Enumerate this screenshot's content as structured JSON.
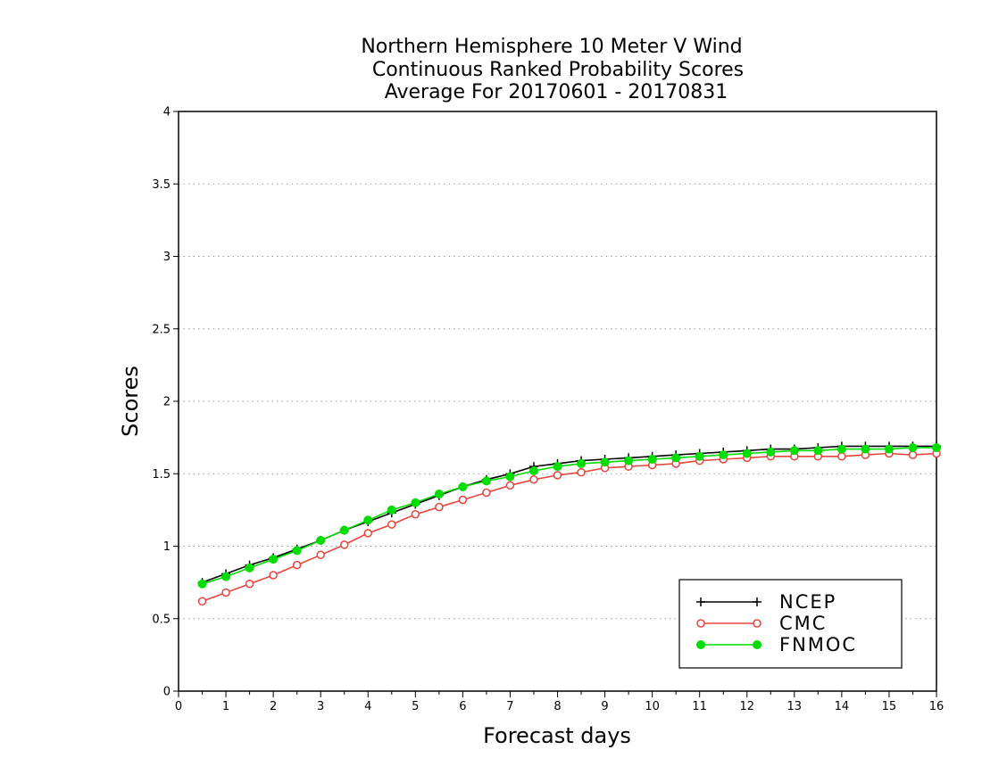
{
  "chart_data": {
    "type": "line",
    "title": [
      "Northern Hemisphere 10 Meter V Wind",
      "Continuous Ranked Probability Scores",
      "Average For 20170601 - 20170831"
    ],
    "xlabel": "Forecast days",
    "ylabel": "Scores",
    "xlim": [
      0,
      16
    ],
    "ylim": [
      0,
      4
    ],
    "xticks": [
      "0",
      "1",
      "2",
      "3",
      "4",
      "5",
      "6",
      "7",
      "8",
      "9",
      "10",
      "11",
      "12",
      "13",
      "14",
      "15",
      "16"
    ],
    "yticks": [
      "0",
      "0.5",
      "1",
      "1.5",
      "2",
      "2.5",
      "3",
      "3.5",
      "4"
    ],
    "grid": "horizontal-dotted",
    "legend_position": "bottom-right",
    "x": [
      0.5,
      1,
      1.5,
      2,
      2.5,
      3,
      3.5,
      4,
      4.5,
      5,
      5.5,
      6,
      6.5,
      7,
      7.5,
      8,
      8.5,
      9,
      9.5,
      10,
      10.5,
      11,
      11.5,
      12,
      12.5,
      13,
      13.5,
      14,
      14.5,
      15,
      15.5,
      16
    ],
    "series": [
      {
        "name": "NCEP",
        "color": "#000000",
        "marker": "plus",
        "values": [
          0.75,
          0.81,
          0.87,
          0.92,
          0.98,
          1.04,
          1.11,
          1.17,
          1.23,
          1.29,
          1.35,
          1.41,
          1.46,
          1.5,
          1.55,
          1.57,
          1.59,
          1.6,
          1.61,
          1.62,
          1.63,
          1.64,
          1.65,
          1.66,
          1.67,
          1.67,
          1.68,
          1.69,
          1.69,
          1.69,
          1.69,
          1.69
        ]
      },
      {
        "name": "CMC",
        "color": "#e8453c",
        "marker": "open-circle",
        "values": [
          0.62,
          0.68,
          0.74,
          0.8,
          0.87,
          0.94,
          1.01,
          1.09,
          1.15,
          1.22,
          1.27,
          1.32,
          1.37,
          1.42,
          1.46,
          1.49,
          1.51,
          1.54,
          1.55,
          1.56,
          1.57,
          1.59,
          1.6,
          1.61,
          1.62,
          1.62,
          1.62,
          1.62,
          1.63,
          1.64,
          1.63,
          1.64
        ]
      },
      {
        "name": "FNMOC",
        "color": "#00dd00",
        "marker": "filled-circle",
        "values": [
          0.74,
          0.79,
          0.85,
          0.91,
          0.97,
          1.04,
          1.11,
          1.18,
          1.25,
          1.3,
          1.36,
          1.41,
          1.45,
          1.48,
          1.52,
          1.55,
          1.57,
          1.58,
          1.59,
          1.6,
          1.61,
          1.62,
          1.63,
          1.64,
          1.65,
          1.66,
          1.66,
          1.67,
          1.67,
          1.67,
          1.68,
          1.68
        ]
      }
    ]
  }
}
